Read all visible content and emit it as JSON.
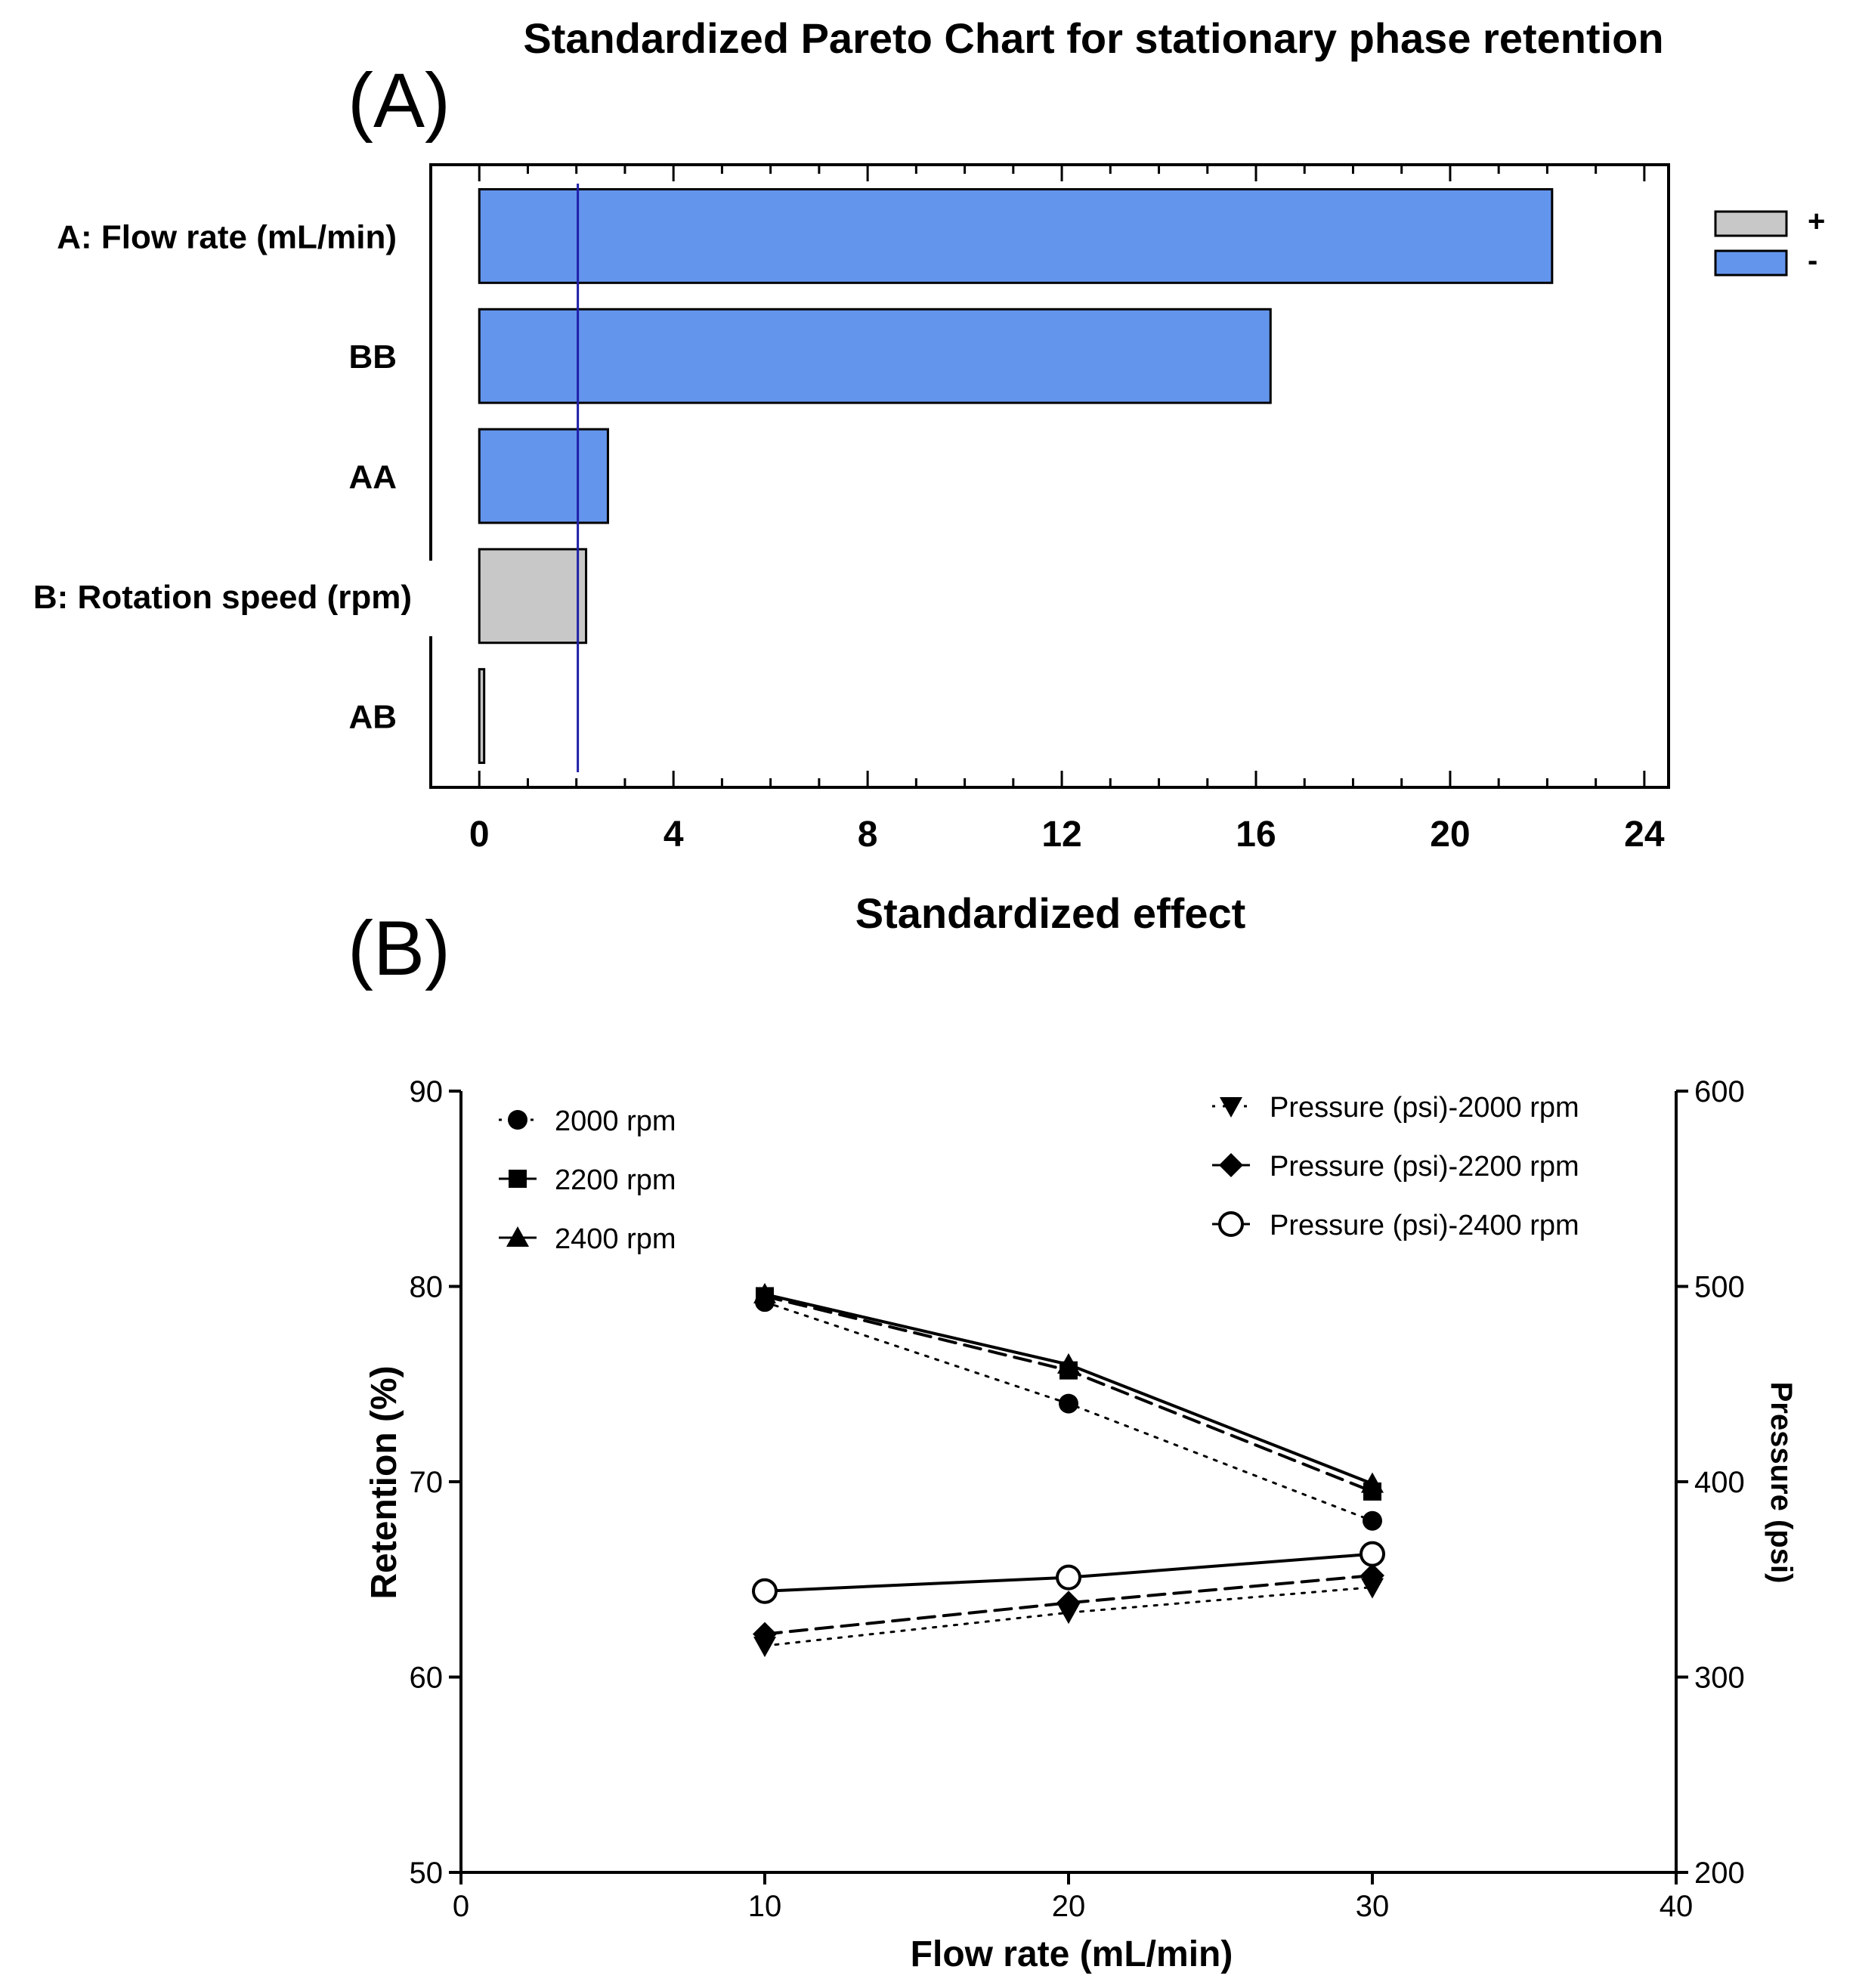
{
  "panel_labels": {
    "a": "(A)",
    "b": "(B)"
  },
  "colors": {
    "negative": "#6495ED",
    "positive": "#C8C8C8",
    "reference": "#1F1FA8",
    "ink": "#000000"
  },
  "chart_data": [
    {
      "type": "bar",
      "orientation": "horizontal",
      "title": "Standardized Pareto Chart for stationary phase retention",
      "xlabel": "Standardized effect",
      "ylabel": "",
      "xlim": [
        -1,
        24.5
      ],
      "xticks": [
        0,
        4,
        8,
        12,
        16,
        20,
        24
      ],
      "categories": [
        "A: Flow rate (mL/min)",
        "BB",
        "AA",
        "B: Rotation speed (rpm)",
        "AB"
      ],
      "values": [
        22.1,
        16.3,
        2.65,
        2.2,
        0.1
      ],
      "signs": [
        "-",
        "-",
        "-",
        "+",
        "+"
      ],
      "reference_line": 2.03,
      "legend": {
        "placement": "right",
        "entries": [
          {
            "label": "+",
            "sign": "+"
          },
          {
            "label": "-",
            "sign": "-"
          }
        ]
      }
    },
    {
      "type": "line",
      "title": "",
      "xlabel": "Flow rate (mL/min)",
      "ylabel": "Retention (%)",
      "y2label": "Pressure (psi)",
      "xlim": [
        0,
        40
      ],
      "ylim": [
        50,
        90
      ],
      "y2lim": [
        200,
        600
      ],
      "xticks": [
        0,
        10,
        20,
        30,
        40
      ],
      "yticks": [
        50,
        60,
        70,
        80,
        90
      ],
      "y2ticks": [
        200,
        300,
        400,
        500,
        600
      ],
      "x": [
        10,
        20,
        30
      ],
      "series": [
        {
          "name": "2000 rpm",
          "axis": "left",
          "values": [
            79.2,
            74.0,
            68.0
          ],
          "marker": "circle-filled",
          "dash": "dotted"
        },
        {
          "name": "2200 rpm",
          "axis": "left",
          "values": [
            79.5,
            75.7,
            69.5
          ],
          "marker": "square-filled",
          "dash": "dashed"
        },
        {
          "name": "2400 rpm",
          "axis": "left",
          "values": [
            79.6,
            76.0,
            69.9
          ],
          "marker": "triangle-up-filled",
          "dash": "solid"
        },
        {
          "name": "Pressure (psi)-2000 rpm",
          "axis": "right",
          "values": [
            316,
            333,
            346
          ],
          "marker": "triangle-down-filled",
          "dash": "dotted"
        },
        {
          "name": "Pressure (psi)-2200 rpm",
          "axis": "right",
          "values": [
            322,
            338,
            352
          ],
          "marker": "diamond-filled",
          "dash": "dashed"
        },
        {
          "name": "Pressure (psi)-2400 rpm",
          "axis": "right",
          "values": [
            344,
            351,
            363
          ],
          "marker": "circle-open",
          "dash": "solid"
        }
      ],
      "legend_left_placement": "top-left",
      "legend_right_placement": "top-right"
    }
  ]
}
